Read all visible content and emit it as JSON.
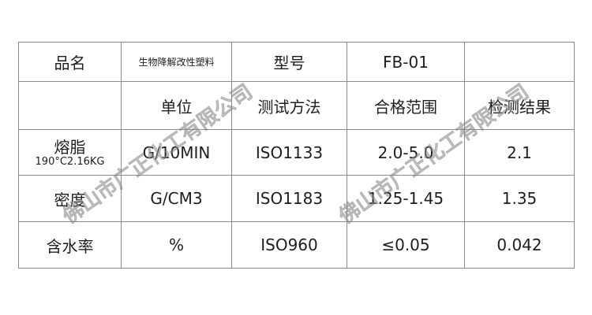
{
  "watermark": "佛山市广正化工有限公司",
  "table": {
    "row1": {
      "label": "品名",
      "name_value": "生物降解改性塑料",
      "model_label": "型号",
      "model_value": "FB-01",
      "extra": ""
    },
    "header": [
      "",
      "单位",
      "测试方法",
      "合格范围",
      "检测结果"
    ],
    "rows": [
      {
        "property": "熔脂",
        "condition": "190°C2.16KG",
        "unit": "G/10MIN",
        "method": "ISO1133",
        "range": "2.0-5.0",
        "result": "2.1"
      },
      {
        "property": "密度",
        "unit": "G/CM3",
        "method": "ISO1183",
        "range": "1.25-1.45",
        "result": "1.35"
      },
      {
        "property": "含水率",
        "unit": "%",
        "method": "ISO960",
        "range": "≤0.05",
        "result": "0.042"
      }
    ]
  }
}
